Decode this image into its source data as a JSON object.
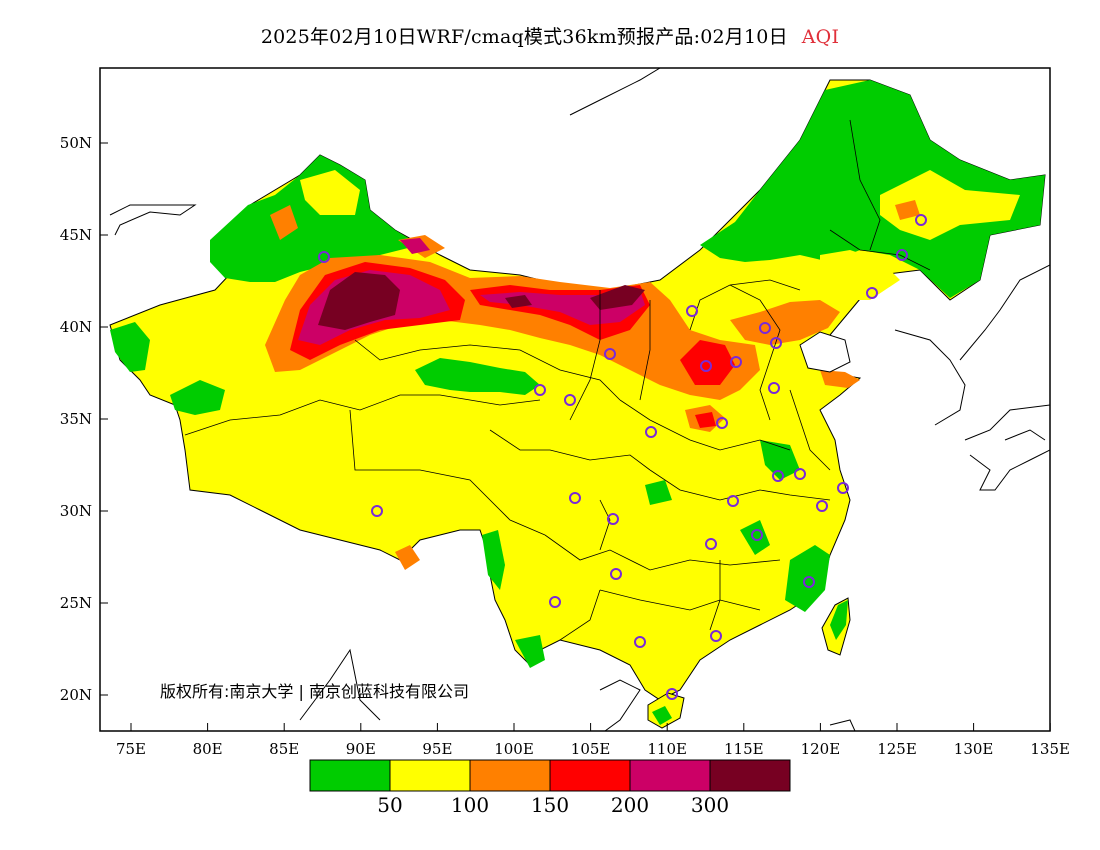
{
  "title": {
    "text": "2025年02月10日WRF/cmaq模式36km预报产品:02月10日",
    "variable": "AQI"
  },
  "axes": {
    "x_ticks": [
      "75E",
      "80E",
      "85E",
      "90E",
      "95E",
      "100E",
      "105E",
      "110E",
      "115E",
      "120E",
      "125E",
      "130E",
      "135E"
    ],
    "y_ticks": [
      "50N",
      "45N",
      "40N",
      "35N",
      "30N",
      "25N",
      "20N"
    ]
  },
  "credit": "版权所有:南京大学 | 南京创蓝科技有限公司",
  "legend": {
    "colors": [
      "#00cc00",
      "#ffff00",
      "#ff8000",
      "#ff0000",
      "#cc0066",
      "#770022"
    ],
    "labels": [
      "50",
      "100",
      "150",
      "200",
      "300"
    ]
  }
}
